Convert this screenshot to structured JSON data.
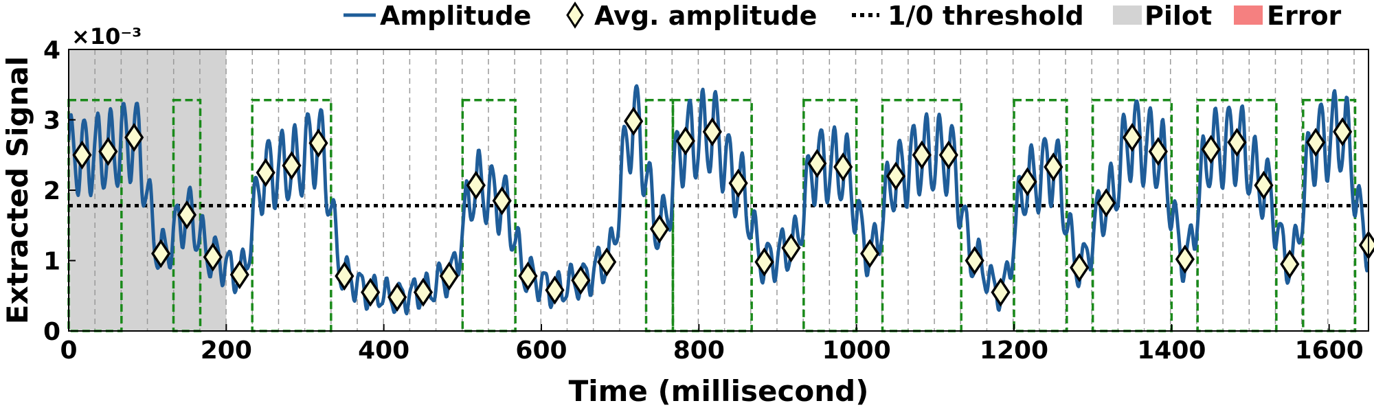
{
  "chart_data": {
    "type": "line",
    "xlabel": "Time (millisecond)",
    "ylabel": "Extracted Signal",
    "y_multiplier": "×10⁻³",
    "xlim": [
      0,
      1650
    ],
    "ylim": [
      0,
      4
    ],
    "x_ticks": [
      "0",
      "200",
      "400",
      "600",
      "800",
      "1000",
      "1200",
      "1400",
      "1600"
    ],
    "y_ticks": [
      "0",
      "1",
      "2",
      "3",
      "4"
    ],
    "threshold": 1.78,
    "pilot_range": [
      0,
      200
    ],
    "bit_period_ms": 33.3,
    "legend": {
      "amplitude": "Amplitude",
      "avg_amplitude": "Avg. amplitude",
      "threshold": "1/0 threshold",
      "pilot": "Pilot",
      "error": "Error"
    },
    "colors": {
      "amplitude": "#1f5d99",
      "avg_marker_fill": "#fbfbd0",
      "threshold": "#000000",
      "pilot": "#d3d3d3",
      "error": "#f58080",
      "bit_box": "#1a8a1a",
      "grid": "#999999"
    },
    "avg_amplitude": {
      "x": [
        17,
        50,
        83,
        117,
        150,
        183,
        217,
        250,
        283,
        317,
        350,
        383,
        417,
        450,
        483,
        517,
        550,
        583,
        617,
        650,
        683,
        717,
        750,
        783,
        817,
        850,
        883,
        917,
        950,
        983,
        1017,
        1050,
        1083,
        1117,
        1150,
        1183,
        1217,
        1250,
        1283,
        1317,
        1350,
        1383,
        1417,
        1450,
        1483,
        1517,
        1550,
        1583,
        1617,
        1650
      ],
      "y": [
        2.5,
        2.55,
        2.75,
        1.1,
        1.65,
        1.05,
        0.8,
        2.25,
        2.35,
        2.67,
        0.78,
        0.55,
        0.48,
        0.55,
        0.78,
        2.07,
        1.85,
        0.78,
        0.58,
        0.72,
        0.98,
        2.98,
        1.45,
        2.7,
        2.83,
        2.1,
        0.98,
        1.18,
        2.38,
        2.33,
        1.1,
        2.2,
        2.5,
        2.5,
        1.0,
        0.55,
        2.12,
        2.33,
        0.9,
        1.82,
        2.75,
        2.55,
        1.02,
        2.58,
        2.68,
        2.07,
        0.95,
        2.68,
        2.83,
        1.22
      ]
    },
    "bit_boxes": [
      [
        0,
        67
      ],
      [
        133,
        167
      ],
      [
        233,
        333
      ],
      [
        500,
        567
      ],
      [
        733,
        767
      ],
      [
        767,
        867
      ],
      [
        933,
        1000
      ],
      [
        1033,
        1133
      ],
      [
        1200,
        1267
      ],
      [
        1300,
        1400
      ],
      [
        1433,
        1533
      ],
      [
        1567,
        1633
      ]
    ]
  }
}
